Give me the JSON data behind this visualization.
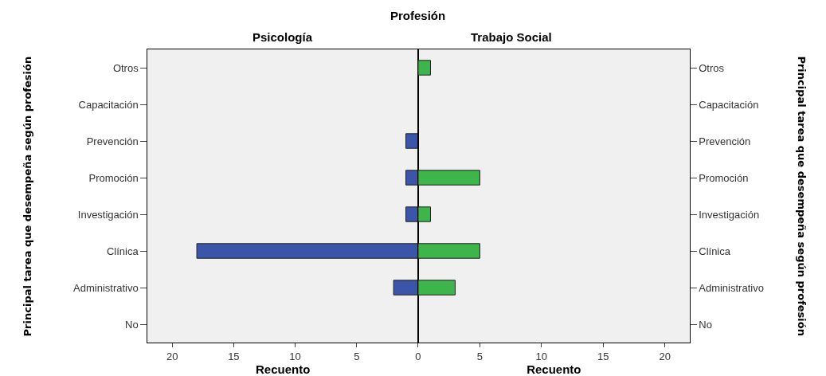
{
  "chart_data": [
    {
      "type": "bar",
      "orientation": "horizontal",
      "title": "Psicología",
      "annotations": [
        "Profesión"
      ],
      "xlabel": "Recuento",
      "ylabel": "Principal tarea que desempeña según profesión",
      "categories": [
        "Otros",
        "Capacitación",
        "Prevención",
        "Promoción",
        "Investigación",
        "Clínica",
        "Administrativo",
        "No"
      ],
      "values": [
        0,
        0,
        1,
        1,
        1,
        18,
        2,
        0
      ],
      "color": "#3b55a8",
      "xlim": [
        22,
        0
      ],
      "xticks": [
        {
          "value": 0,
          "label": null
        },
        5,
        10,
        15,
        20
      ],
      "grid": false
    },
    {
      "type": "bar",
      "orientation": "horizontal",
      "title": "Trabajo Social",
      "xlabel": "Recuento",
      "ylabel": "Principal tarea que desempeña según profesión",
      "categories": [
        "Otros",
        "Capacitación",
        "Prevención",
        "Promoción",
        "Investigación",
        "Clínica",
        "Administrativo",
        "No"
      ],
      "values": [
        1,
        0,
        0,
        5,
        1,
        5,
        3,
        0
      ],
      "color": "#3db54a",
      "xlim": [
        0,
        22
      ],
      "xticks": [
        0,
        5,
        10,
        15,
        20
      ],
      "grid": false
    }
  ]
}
